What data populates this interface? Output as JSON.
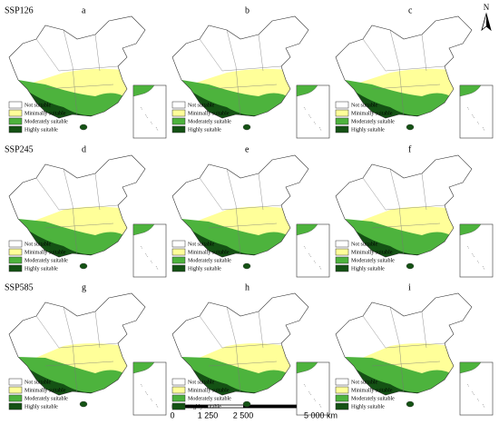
{
  "rows": [
    {
      "label": "SSP126",
      "panels": [
        "a",
        "b",
        "c"
      ]
    },
    {
      "label": "SSP245",
      "panels": [
        "d",
        "e",
        "f"
      ]
    },
    {
      "label": "SSP585",
      "panels": [
        "g",
        "h",
        "i"
      ]
    }
  ],
  "legend": {
    "items": [
      {
        "label": "Not suitable",
        "color": "#ffffff"
      },
      {
        "label": "Minimally suitable",
        "color": "#ffff99"
      },
      {
        "label": "Moderately suitable",
        "color": "#4db33d"
      },
      {
        "label": "Highly suitable",
        "color": "#145214"
      }
    ]
  },
  "scale_bar": {
    "labels": [
      "0",
      "1 250",
      "2 500",
      "5 000 km"
    ]
  },
  "north": "N"
}
